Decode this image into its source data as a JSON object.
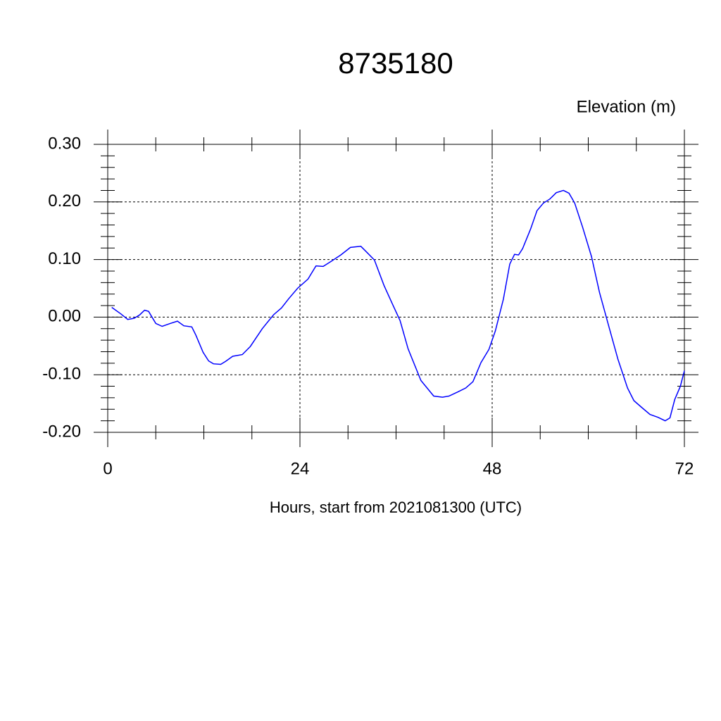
{
  "chart_data": {
    "type": "line",
    "title": "8735180",
    "ylabel": "Elevation (m)",
    "xlabel": "Hours, start from 2021081300 (UTC)",
    "xlim": [
      0,
      72
    ],
    "xticks": [
      0,
      24,
      48,
      72
    ],
    "ylim": [
      -0.2,
      0.3
    ],
    "yticks": [
      {
        "value": -0.2,
        "label": "-0.20"
      },
      {
        "value": -0.1,
        "label": "-0.10"
      },
      {
        "value": 0,
        "label": "0.00"
      },
      {
        "value": 0.1,
        "label": "0.10"
      },
      {
        "value": 0.2,
        "label": "0.20"
      },
      {
        "value": 0.3,
        "label": "0.30"
      }
    ],
    "grid": true,
    "x": [
      0.5,
      1.7,
      2.5,
      3.3,
      4,
      4.6,
      5.1,
      6,
      6.8,
      7.8,
      8.7,
      9.5,
      10.5,
      11,
      11.9,
      12.6,
      13.2,
      14.1,
      14.7,
      15.6,
      16.8,
      17.8,
      19.3,
      20.7,
      21.7,
      22.6,
      23.7,
      25,
      26,
      26.9,
      27.9,
      29.1,
      30.3,
      31.6,
      32.4,
      33.3,
      34.5,
      35.6,
      36.5,
      37.5,
      39.1,
      40.7,
      41.8,
      42.6,
      43.7,
      44.7,
      45.6,
      46.6,
      47.6,
      48.4,
      49.4,
      50.2,
      50.8,
      51.3,
      51.8,
      52.8,
      53.6,
      54.4,
      55.2,
      56,
      56.9,
      57.6,
      58.3,
      59.3,
      60.4,
      61.4,
      62.6,
      63.7,
      64.9,
      65.7,
      66.6,
      67.7,
      68.7,
      69.6,
      70.2,
      70.8,
      71.5,
      72
    ],
    "series": [
      {
        "color": "#0000ff",
        "values": [
          0.017,
          0.005,
          -0.004,
          -0.002,
          0.004,
          0.012,
          0.01,
          -0.011,
          -0.016,
          -0.011,
          -0.007,
          -0.015,
          -0.017,
          -0.031,
          -0.061,
          -0.076,
          -0.081,
          -0.082,
          -0.077,
          -0.068,
          -0.065,
          -0.051,
          -0.02,
          0.004,
          0.016,
          0.032,
          0.05,
          0.066,
          0.089,
          0.088,
          0.097,
          0.108,
          0.121,
          0.123,
          0.112,
          0.099,
          0.055,
          0.021,
          -0.006,
          -0.055,
          -0.11,
          -0.137,
          -0.139,
          -0.137,
          -0.13,
          -0.123,
          -0.112,
          -0.079,
          -0.056,
          -0.024,
          0.031,
          0.092,
          0.109,
          0.108,
          0.119,
          0.153,
          0.185,
          0.198,
          0.205,
          0.216,
          0.22,
          0.215,
          0.198,
          0.156,
          0.105,
          0.043,
          -0.018,
          -0.073,
          -0.123,
          -0.145,
          -0.156,
          -0.169,
          -0.174,
          -0.18,
          -0.175,
          -0.143,
          -0.12,
          -0.093
        ]
      }
    ]
  }
}
